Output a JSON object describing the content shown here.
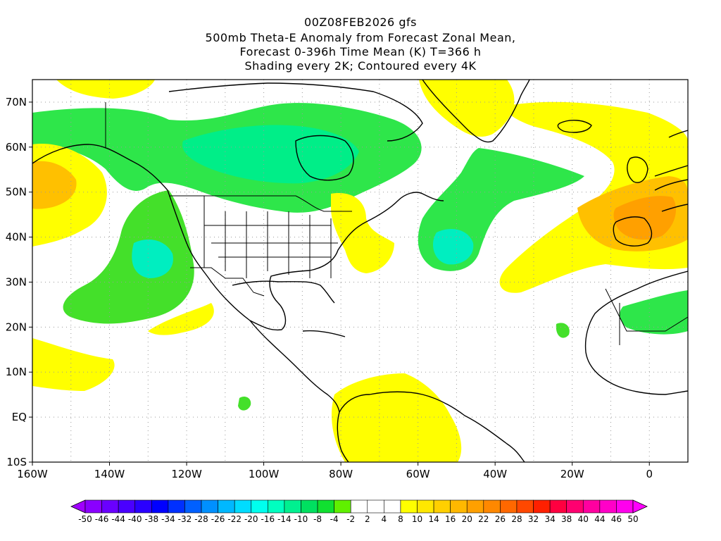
{
  "title": {
    "line1": "00Z08FEB2026 gfs",
    "line2": "500mb Theta-E Anomaly from Forecast Zonal Mean,",
    "line3": "Forecast 0-396h Time Mean (K) T=366 h",
    "line4": "Shading every 2K; Contoured every 4K"
  },
  "map": {
    "lon_range": [
      -160,
      10
    ],
    "lat_range": [
      -10,
      75
    ],
    "y_ticks": [
      "10S",
      "EQ",
      "10N",
      "20N",
      "30N",
      "40N",
      "50N",
      "60N",
      "70N"
    ],
    "x_ticks": [
      "160W",
      "140W",
      "120W",
      "100W",
      "80W",
      "60W",
      "40W",
      "20W",
      "0"
    ]
  },
  "colorbar": {
    "labels": [
      "-50",
      "-46",
      "-44",
      "-40",
      "-38",
      "-34",
      "-32",
      "-28",
      "-26",
      "-22",
      "-20",
      "-16",
      "-14",
      "-10",
      "-8",
      "-4",
      "-2",
      "2",
      "4",
      "8",
      "10",
      "14",
      "16",
      "20",
      "22",
      "26",
      "28",
      "32",
      "34",
      "38",
      "40",
      "44",
      "46",
      "50"
    ],
    "colors": [
      "#8a00ff",
      "#6a00ff",
      "#4a00ff",
      "#2a00ff",
      "#0000ff",
      "#0030ff",
      "#0060ff",
      "#0090ff",
      "#00b8ff",
      "#00dcff",
      "#00ffee",
      "#00ffc0",
      "#00f090",
      "#00e060",
      "#10e030",
      "#60f000",
      "#ffffff",
      "#ffffff",
      "#ffffff",
      "#ffff00",
      "#ffe800",
      "#ffd000",
      "#ffb800",
      "#ffa000",
      "#ff8800",
      "#ff6800",
      "#ff4800",
      "#ff2000",
      "#ff0040",
      "#ff0070",
      "#ff00a0",
      "#ff00c8",
      "#ff00ee"
    ]
  }
}
